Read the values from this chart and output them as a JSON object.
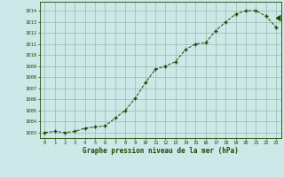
{
  "x": [
    0,
    1,
    2,
    3,
    4,
    5,
    6,
    7,
    8,
    9,
    10,
    11,
    12,
    13,
    14,
    15,
    16,
    17,
    18,
    19,
    20,
    21,
    22,
    23
  ],
  "y": [
    1003.0,
    1003.1,
    1003.0,
    1003.1,
    1003.4,
    1003.5,
    1003.6,
    1004.3,
    1005.0,
    1006.1,
    1007.5,
    1008.7,
    1009.0,
    1009.4,
    1010.5,
    1011.0,
    1011.1,
    1012.2,
    1013.0,
    1013.7,
    1014.0,
    1014.0,
    1013.5,
    1012.5
  ],
  "title": "Graphe pression niveau de la mer (hPa)",
  "bg_color": "#cce8e8",
  "line_color": "#1a4a00",
  "marker_color": "#1a4a00",
  "grid_color": "#99bbaa",
  "text_color": "#1a4a00",
  "ylim_min": 1002.5,
  "ylim_max": 1014.8,
  "yticks": [
    1003,
    1004,
    1005,
    1006,
    1007,
    1008,
    1009,
    1010,
    1011,
    1012,
    1013,
    1014
  ],
  "xticks": [
    0,
    1,
    2,
    3,
    4,
    5,
    6,
    7,
    8,
    9,
    10,
    11,
    12,
    13,
    14,
    15,
    16,
    17,
    18,
    19,
    20,
    21,
    22,
    23
  ],
  "extra_point_x": 23,
  "extra_point_y": 1013.4
}
